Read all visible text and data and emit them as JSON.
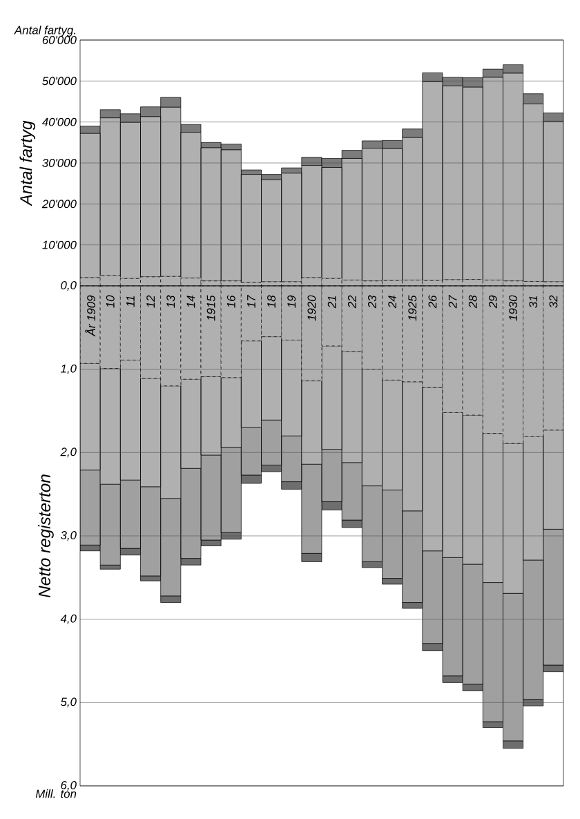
{
  "chart_data": [
    {
      "type": "bar",
      "stacked": true,
      "ylabel": "Antal fartyg",
      "annotations": [
        "Antal fartyg."
      ],
      "grid": "y",
      "categories": [
        null,
        null,
        null,
        null,
        null,
        null,
        null,
        null,
        null,
        null,
        null,
        null,
        null,
        null,
        null,
        null,
        null,
        null,
        null,
        null,
        null,
        null,
        null,
        null
      ],
      "ylim": [
        0,
        60000
      ],
      "yticks": [
        {
          "value": 10000,
          "label": "10'000"
        },
        {
          "value": 20000,
          "label": "20'000"
        },
        {
          "value": 30000,
          "label": "30'000"
        },
        {
          "value": 40000,
          "label": "40'000"
        },
        {
          "value": 50000,
          "label": "50'000"
        },
        {
          "value": 60000,
          "label": "60'000"
        }
      ],
      "series": [
        {
          "color": "#b0b0b0",
          "line_style": "dashed",
          "values": [
            2000,
            2500,
            1800,
            2200,
            2300,
            1900,
            1200,
            1200,
            800,
            1000,
            1000,
            2000,
            1800,
            1400,
            1200,
            1300,
            1400,
            1300,
            1500,
            1600,
            1400,
            1200,
            1100,
            1000
          ]
        },
        {
          "color": "#b0b0b0",
          "values": [
            35200,
            38500,
            38100,
            39100,
            41300,
            35600,
            32500,
            32000,
            26400,
            24900,
            26500,
            27400,
            27100,
            29700,
            32400,
            32200,
            34800,
            48500,
            47300,
            46900,
            49500,
            50700,
            43300,
            39200
          ]
        },
        {
          "color": "#7c7c7c",
          "values": [
            1800,
            2000,
            2100,
            2400,
            2400,
            1900,
            1300,
            1400,
            1100,
            1300,
            1300,
            2000,
            2200,
            2000,
            1800,
            2000,
            2100,
            2200,
            2100,
            2300,
            2000,
            2100,
            2500,
            2000
          ]
        }
      ]
    },
    {
      "type": "bar",
      "stacked": true,
      "ylabel": "Netto registerton",
      "annotations": [
        "Mill. ton"
      ],
      "grid": "y",
      "categories": [
        "År 1909",
        "10",
        "11",
        "12",
        "13",
        "14",
        "1915",
        "16",
        "17",
        "18",
        "19",
        "1920",
        "21",
        "22",
        "23",
        "24",
        "1925",
        "26",
        "27",
        "28",
        "29",
        "1930",
        "31",
        "32"
      ],
      "ylim": [
        6,
        0
      ],
      "yticks": [
        {
          "value": 0,
          "label": "0,0"
        },
        {
          "value": 1,
          "label": "1,0"
        },
        {
          "value": 2,
          "label": "2,0"
        },
        {
          "value": 3,
          "label": "3,0"
        },
        {
          "value": 4,
          "label": "4,0"
        },
        {
          "value": 5,
          "label": "5,0"
        },
        {
          "value": 6,
          "label": "6,0"
        }
      ],
      "series": [
        {
          "color": "#b0b0b0",
          "line_style": "dashed",
          "values": [
            0.93,
            0.99,
            0.89,
            1.11,
            1.2,
            1.12,
            1.09,
            1.1,
            0.66,
            0.61,
            0.65,
            1.14,
            0.72,
            0.79,
            1.0,
            1.13,
            1.15,
            1.22,
            1.52,
            1.55,
            1.77,
            1.89,
            1.81,
            1.73
          ]
        },
        {
          "color": "#b0b0b0",
          "values": [
            1.28,
            1.39,
            1.44,
            1.3,
            1.35,
            1.07,
            0.94,
            0.84,
            1.04,
            1.0,
            1.15,
            1.0,
            1.24,
            1.33,
            1.4,
            1.32,
            1.55,
            1.96,
            1.74,
            1.79,
            1.79,
            1.8,
            1.48,
            1.19
          ]
        },
        {
          "color": "#a0a0a0",
          "values": [
            0.9,
            0.97,
            0.82,
            1.07,
            1.17,
            1.08,
            1.02,
            1.02,
            0.57,
            0.54,
            0.55,
            1.07,
            0.63,
            0.69,
            0.91,
            1.06,
            1.1,
            1.11,
            1.42,
            1.44,
            1.67,
            1.77,
            1.67,
            1.63
          ]
        },
        {
          "color": "#6e6e6e",
          "values": [
            0.07,
            0.05,
            0.08,
            0.06,
            0.08,
            0.08,
            0.07,
            0.08,
            0.1,
            0.08,
            0.09,
            0.1,
            0.1,
            0.09,
            0.07,
            0.07,
            0.07,
            0.09,
            0.08,
            0.08,
            0.07,
            0.09,
            0.08,
            0.08
          ]
        }
      ]
    }
  ]
}
